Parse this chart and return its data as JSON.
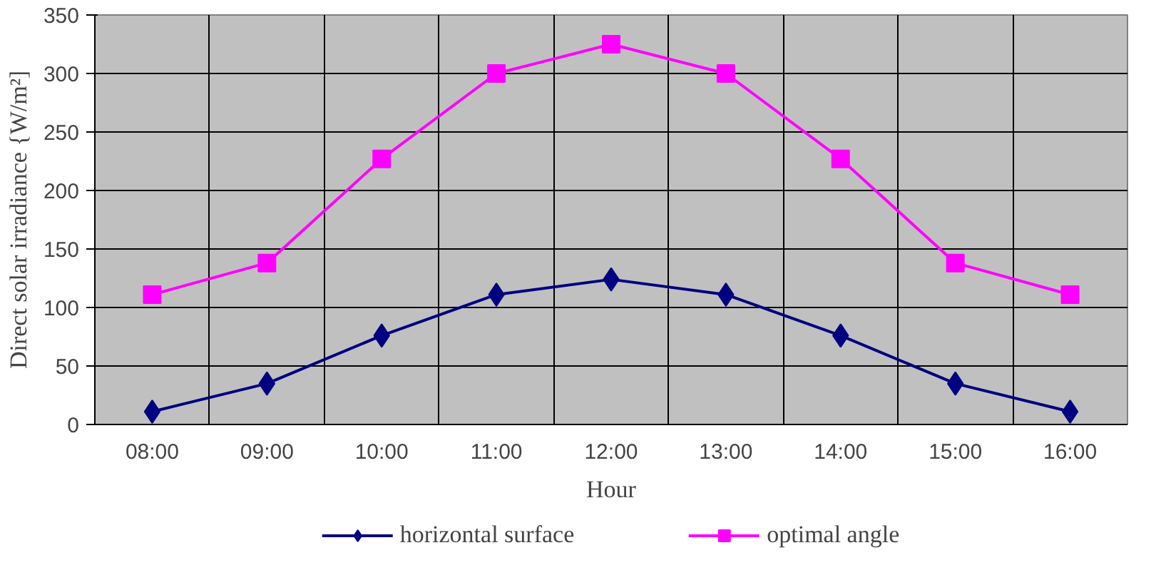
{
  "chart_data": {
    "type": "line",
    "xlabel": "Hour",
    "ylabel": "Direct solar irradiance {W/m²]",
    "categories": [
      "08:00",
      "09:00",
      "10:00",
      "11:00",
      "12:00",
      "13:00",
      "14:00",
      "15:00",
      "16:00"
    ],
    "series": [
      {
        "name": "horizontal surface",
        "color": "#000080",
        "marker": "diamond",
        "values": [
          11,
          35,
          76,
          111,
          124,
          111,
          76,
          35,
          11
        ]
      },
      {
        "name": "optimal angle",
        "color": "#ff00ff",
        "marker": "square",
        "values": [
          111,
          138,
          227,
          300,
          325,
          300,
          227,
          138,
          111
        ]
      }
    ],
    "ylim": [
      0,
      350
    ],
    "yticks": [
      0,
      50,
      100,
      150,
      200,
      250,
      300,
      350
    ],
    "grid": true,
    "legend": "bottom",
    "line_style": "solid"
  }
}
